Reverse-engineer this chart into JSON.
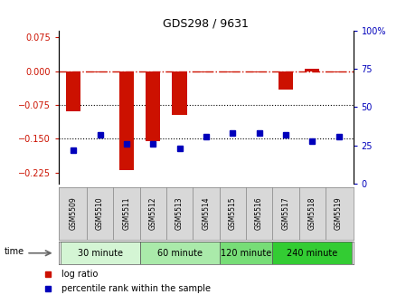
{
  "title": "GDS298 / 9631",
  "samples": [
    "GSM5509",
    "GSM5510",
    "GSM5511",
    "GSM5512",
    "GSM5513",
    "GSM5514",
    "GSM5515",
    "GSM5516",
    "GSM5517",
    "GSM5518",
    "GSM5519"
  ],
  "log_ratio": [
    -0.09,
    -0.003,
    -0.22,
    -0.155,
    -0.098,
    -0.002,
    -0.003,
    -0.002,
    -0.042,
    0.005,
    -0.002
  ],
  "percentile_rank": [
    22,
    32,
    26,
    26,
    23,
    31,
    33,
    33,
    32,
    28,
    31
  ],
  "ylim_left": [
    -0.25,
    0.09
  ],
  "ylim_right": [
    0,
    100
  ],
  "yticks_left": [
    -0.225,
    -0.15,
    -0.075,
    0,
    0.075
  ],
  "yticks_right": [
    0,
    25,
    50,
    75,
    100
  ],
  "hlines": [
    -0.075,
    -0.15
  ],
  "zero_line": 0.0,
  "groups": [
    {
      "label": "30 minute",
      "start": 0,
      "end": 2,
      "color": "#d4f5d4"
    },
    {
      "label": "60 minute",
      "start": 3,
      "end": 5,
      "color": "#aaeaaa"
    },
    {
      "label": "120 minute",
      "start": 6,
      "end": 7,
      "color": "#77dd77"
    },
    {
      "label": "240 minute",
      "start": 8,
      "end": 10,
      "color": "#33cc33"
    }
  ],
  "bar_color": "#cc1100",
  "dot_color": "#0000bb",
  "zero_line_color": "#cc1100",
  "zero_line_style": "-.",
  "hline_color": "#000000",
  "hline_style": ":",
  "legend_labels": [
    "log ratio",
    "percentile rank within the sample"
  ],
  "time_label": "time"
}
